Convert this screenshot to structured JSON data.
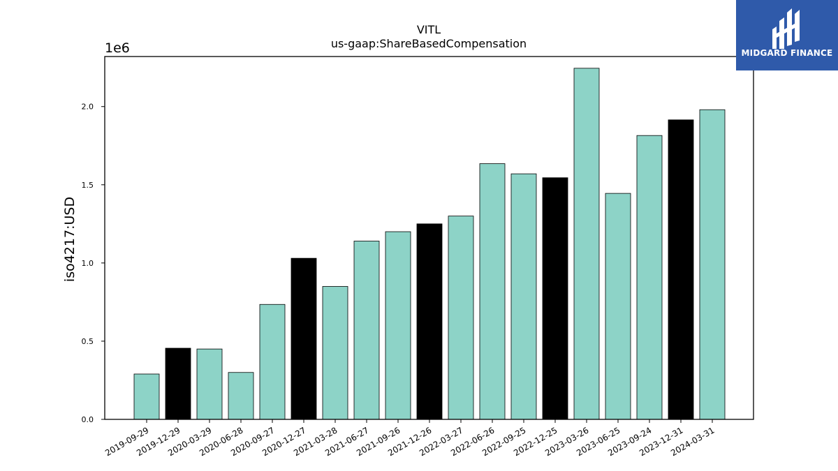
{
  "chart_data": {
    "type": "bar",
    "title": "VITL",
    "subtitle": "us-gaap:ShareBasedCompensation",
    "xlabel": "",
    "ylabel": "iso4217:USD",
    "y_multiplier_label": "1e6",
    "ylim": [
      0,
      2.32
    ],
    "yticks": [
      0.0,
      0.5,
      1.0,
      1.5,
      2.0
    ],
    "ytick_labels": [
      "0.0",
      "0.5",
      "1.0",
      "1.5",
      "2.0"
    ],
    "grid": false,
    "categories": [
      "2019-09-29",
      "2019-12-29",
      "2020-03-29",
      "2020-06-28",
      "2020-09-27",
      "2020-12-27",
      "2021-03-28",
      "2021-06-27",
      "2021-09-26",
      "2021-12-26",
      "2022-03-27",
      "2022-06-26",
      "2022-09-25",
      "2022-12-25",
      "2023-03-26",
      "2023-06-25",
      "2023-09-24",
      "2023-12-31",
      "2024-03-31"
    ],
    "values": [
      0.29,
      0.455,
      0.45,
      0.3,
      0.735,
      1.03,
      0.85,
      1.14,
      1.2,
      1.25,
      1.3,
      1.635,
      1.57,
      1.545,
      2.245,
      1.445,
      1.815,
      1.915,
      1.98
    ],
    "bar_colors": [
      "#8dd3c7",
      "#000000",
      "#8dd3c7",
      "#8dd3c7",
      "#8dd3c7",
      "#000000",
      "#8dd3c7",
      "#8dd3c7",
      "#8dd3c7",
      "#000000",
      "#8dd3c7",
      "#8dd3c7",
      "#8dd3c7",
      "#000000",
      "#8dd3c7",
      "#8dd3c7",
      "#8dd3c7",
      "#000000",
      "#8dd3c7"
    ],
    "colors": {
      "teal": "#8dd3c7",
      "black": "#000000"
    }
  },
  "logo": {
    "text": "MIDGARD FINANCE",
    "background": "#2f5aaa",
    "icon": "midgard-logo-icon"
  }
}
